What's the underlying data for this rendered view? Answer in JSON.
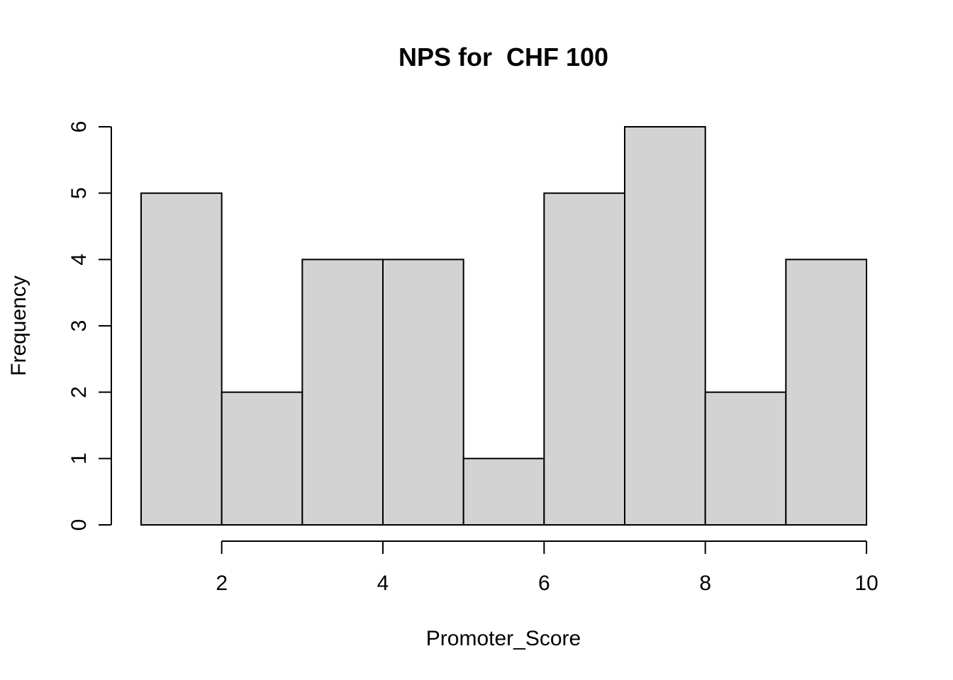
{
  "chart_data": {
    "type": "bar",
    "title": "NPS for  CHF 100",
    "xlabel": "Promoter_Score",
    "ylabel": "Frequency",
    "bins": [
      {
        "start": 1,
        "end": 2,
        "count": 5
      },
      {
        "start": 2,
        "end": 3,
        "count": 2
      },
      {
        "start": 3,
        "end": 4,
        "count": 4
      },
      {
        "start": 4,
        "end": 5,
        "count": 4
      },
      {
        "start": 5,
        "end": 6,
        "count": 1
      },
      {
        "start": 6,
        "end": 7,
        "count": 5
      },
      {
        "start": 7,
        "end": 8,
        "count": 6
      },
      {
        "start": 8,
        "end": 9,
        "count": 2
      },
      {
        "start": 9,
        "end": 10,
        "count": 4
      }
    ],
    "xlim": [
      1,
      10
    ],
    "ylim": [
      0,
      6
    ],
    "x_ticks": [
      2,
      4,
      6,
      8,
      10
    ],
    "y_ticks": [
      0,
      1,
      2,
      3,
      4,
      5,
      6
    ],
    "grid": false,
    "bar_fill": "#d3d3d3",
    "bar_stroke": "#000000"
  }
}
